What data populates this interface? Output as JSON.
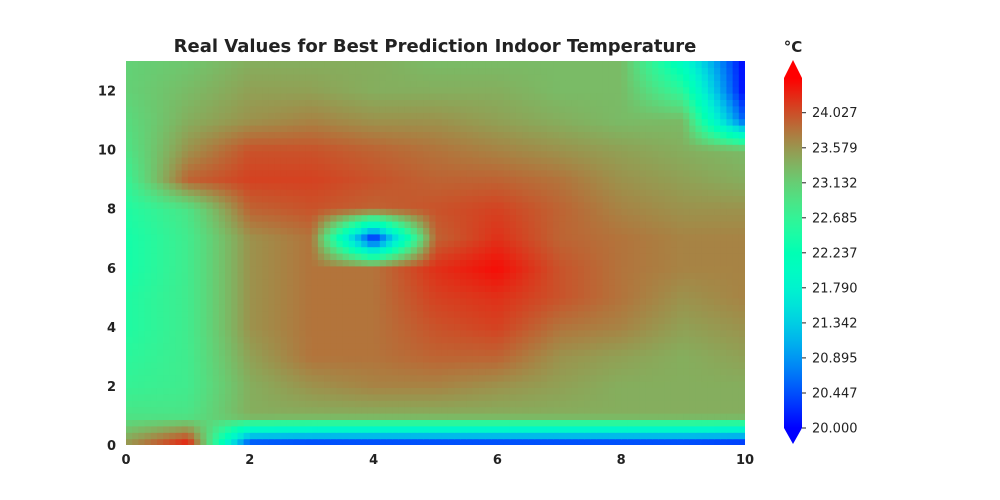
{
  "chart_data": {
    "type": "heatmap",
    "title": "Real Values for Best Prediction Indoor Temperature",
    "colorbar_label": "°C",
    "colormap": "rainbow",
    "xlim": [
      0,
      10
    ],
    "ylim": [
      0,
      13
    ],
    "x_ticks": [
      "0",
      "2",
      "4",
      "6",
      "8",
      "10"
    ],
    "y_ticks": [
      "0",
      "2",
      "4",
      "6",
      "8",
      "10",
      "12"
    ],
    "colorbar_ticks": [
      "20.000",
      "20.447",
      "20.895",
      "21.342",
      "21.790",
      "22.237",
      "22.685",
      "23.132",
      "23.579",
      "24.027"
    ],
    "vmin": 20.0,
    "vmax": 24.47,
    "grid": false,
    "x": [
      0,
      1,
      2,
      3,
      4,
      5,
      6,
      7,
      8,
      9,
      10
    ],
    "y": [
      0,
      1,
      2,
      3,
      4,
      5,
      6,
      7,
      8,
      9,
      10,
      11,
      12,
      13
    ],
    "values": [
      [
        23.6,
        24.4,
        20.2,
        20.1,
        20.1,
        20.1,
        20.1,
        20.1,
        20.1,
        20.1,
        20.0
      ],
      [
        22.9,
        22.9,
        23.4,
        23.4,
        23.4,
        23.4,
        23.4,
        23.4,
        23.4,
        23.4,
        23.4
      ],
      [
        22.7,
        22.8,
        23.4,
        23.6,
        23.7,
        23.7,
        23.6,
        23.5,
        23.4,
        23.4,
        23.4
      ],
      [
        22.6,
        22.8,
        23.5,
        23.8,
        23.8,
        23.9,
        23.9,
        23.6,
        23.5,
        23.4,
        23.5
      ],
      [
        22.5,
        22.8,
        23.6,
        23.8,
        23.8,
        24.0,
        24.1,
        23.8,
        23.7,
        23.5,
        23.6
      ],
      [
        22.5,
        22.8,
        23.6,
        23.8,
        23.8,
        24.1,
        24.2,
        24.0,
        23.8,
        23.6,
        23.7
      ],
      [
        22.4,
        22.8,
        23.6,
        23.8,
        23.8,
        24.2,
        24.4,
        24.0,
        23.8,
        23.7,
        23.7
      ],
      [
        22.4,
        22.8,
        23.6,
        23.8,
        20.1,
        23.9,
        24.2,
        23.9,
        23.8,
        23.7,
        23.7
      ],
      [
        22.5,
        22.9,
        23.9,
        24.0,
        23.9,
        24.0,
        24.1,
        23.9,
        23.7,
        23.6,
        23.6
      ],
      [
        22.7,
        23.9,
        24.1,
        24.1,
        24.0,
        23.9,
        23.9,
        23.8,
        23.6,
        23.5,
        23.4
      ],
      [
        22.9,
        23.6,
        24.0,
        24.0,
        23.9,
        23.8,
        23.7,
        23.6,
        23.5,
        23.4,
        23.3
      ],
      [
        23.0,
        23.4,
        23.6,
        23.7,
        23.6,
        23.6,
        23.5,
        23.4,
        23.3,
        23.3,
        20.5
      ],
      [
        23.1,
        23.3,
        23.5,
        23.5,
        23.4,
        23.4,
        23.4,
        23.3,
        23.3,
        22.6,
        20.0
      ],
      [
        23.1,
        23.2,
        23.4,
        23.4,
        23.4,
        23.3,
        23.3,
        23.3,
        23.3,
        22.0,
        20.0
      ]
    ]
  }
}
